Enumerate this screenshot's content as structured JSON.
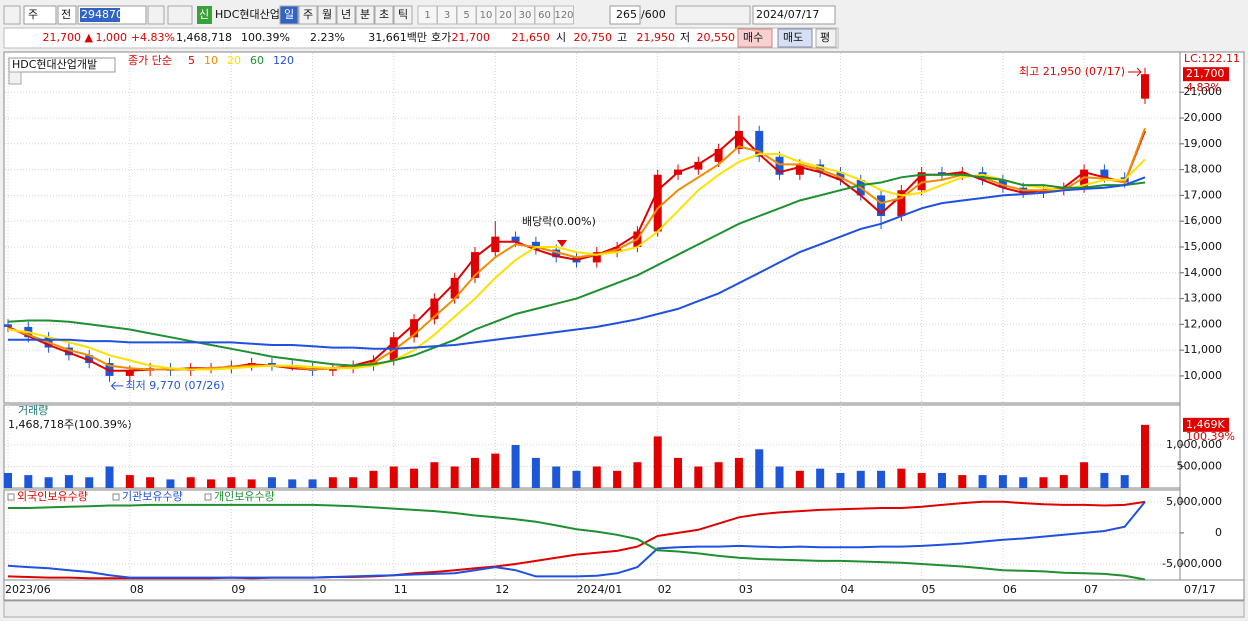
{
  "toolbar": {
    "market": "주",
    "mode": "전",
    "code": "294870",
    "badge": "신",
    "name": "HDC현대산업",
    "periods": [
      "일",
      "주",
      "월",
      "년",
      "분",
      "초",
      "틱"
    ],
    "multipliers": [
      1,
      3,
      5,
      10,
      20,
      30,
      60,
      120
    ],
    "count": 265,
    "max": "/600",
    "date": "2024/07/17"
  },
  "quote": {
    "price": "21,700 ▲",
    "change": "1,000",
    "change_pct": "+4.83%",
    "volume": "1,468,718",
    "volume_ratio": "100.39%",
    "turnover": "2.23%",
    "amount": "31,661백만",
    "bid_label": "호가",
    "ask": "21,700",
    "bid": "21,650",
    "open_label": "시",
    "open": "20,750",
    "high_label": "고",
    "high": "21,950",
    "low_label": "저",
    "low": "20,550",
    "buy": "매수",
    "sell": "매도",
    "avg": "평"
  },
  "chart_data": [
    {
      "type": "candlestick",
      "title": "HDC현대산업개발",
      "subtitle": "종가 단순",
      "up_color": "#e00000",
      "down_color": "#1e56d8",
      "open": [
        12000,
        11900,
        11500,
        11100,
        10800,
        10500,
        10000,
        10200,
        10300,
        10200,
        10300,
        10300,
        10400,
        10500,
        10400,
        10300,
        10200,
        10300,
        10400,
        10600,
        11500,
        12200,
        13000,
        13800,
        14800,
        15400,
        15200,
        14900,
        14600,
        14400,
        14800,
        15000,
        15600,
        17800,
        18000,
        18300,
        18800,
        19500,
        18500,
        17800,
        18200,
        17900,
        17600,
        17000,
        16200,
        17200,
        17900,
        17800,
        17900,
        17600,
        17300,
        17100,
        17200,
        17300,
        18000,
        17700,
        20750
      ],
      "high": [
        12200,
        12100,
        11700,
        11300,
        11000,
        10700,
        10400,
        10500,
        10500,
        10500,
        10500,
        10600,
        10700,
        10700,
        10600,
        10500,
        10500,
        10600,
        10800,
        11700,
        12400,
        13200,
        14000,
        15000,
        16000,
        15600,
        15400,
        15100,
        14800,
        15000,
        15200,
        15800,
        18000,
        18200,
        18500,
        19000,
        20100,
        19700,
        18700,
        18400,
        18400,
        18100,
        17800,
        17200,
        17400,
        18100,
        18100,
        18100,
        18100,
        17800,
        17500,
        17400,
        17500,
        18200,
        18200,
        17900,
        21950
      ],
      "low": [
        11700,
        11300,
        10900,
        10600,
        10300,
        9770,
        9800,
        10000,
        10000,
        10000,
        10100,
        10100,
        10200,
        10200,
        10200,
        10000,
        10000,
        10100,
        10200,
        10400,
        11300,
        12000,
        12800,
        13600,
        14600,
        15000,
        14700,
        14400,
        14200,
        14200,
        14600,
        14800,
        15400,
        17600,
        17800,
        18100,
        18600,
        18300,
        17600,
        17600,
        17700,
        17400,
        16800,
        15700,
        16000,
        17000,
        17600,
        17600,
        17400,
        17100,
        16900,
        16900,
        17000,
        17100,
        17500,
        17300,
        20550
      ],
      "close": [
        11900,
        11500,
        11100,
        10800,
        10500,
        10000,
        10200,
        10300,
        10200,
        10300,
        10300,
        10400,
        10500,
        10400,
        10300,
        10200,
        10300,
        10400,
        10600,
        11500,
        12200,
        13000,
        13800,
        14800,
        15400,
        15200,
        14900,
        14600,
        14400,
        14800,
        15000,
        15600,
        17800,
        18000,
        18300,
        18800,
        19500,
        18500,
        17800,
        18200,
        17900,
        17600,
        17000,
        16200,
        17200,
        17900,
        17800,
        17900,
        17600,
        17300,
        17100,
        17200,
        17300,
        18000,
        17700,
        17500,
        21700
      ],
      "series": [
        {
          "name": "5",
          "color": "#e00000",
          "values": [
            11900,
            11550,
            11200,
            10900,
            10600,
            10200,
            10200,
            10250,
            10250,
            10300,
            10300,
            10350,
            10450,
            10400,
            10300,
            10250,
            10300,
            10400,
            10600,
            11300,
            12000,
            12800,
            13600,
            14600,
            15200,
            15200,
            14900,
            14650,
            14500,
            14700,
            15000,
            15500,
            17200,
            17900,
            18200,
            18700,
            19400,
            18600,
            17900,
            18100,
            17900,
            17600,
            17000,
            16300,
            17000,
            17800,
            17800,
            17900,
            17600,
            17300,
            17100,
            17200,
            17300,
            17900,
            17700,
            17500,
            19500
          ]
        },
        {
          "name": "10",
          "color": "#f08c00",
          "values": [
            11850,
            11600,
            11300,
            11000,
            10800,
            10400,
            10300,
            10250,
            10250,
            10250,
            10300,
            10350,
            10400,
            10400,
            10350,
            10250,
            10300,
            10350,
            10500,
            11000,
            11600,
            12300,
            13000,
            13900,
            14600,
            15100,
            15000,
            14800,
            14600,
            14700,
            14900,
            15300,
            16500,
            17200,
            17700,
            18200,
            18900,
            18700,
            18200,
            18200,
            18000,
            17700,
            17300,
            16700,
            16900,
            17500,
            17600,
            17800,
            17700,
            17400,
            17200,
            17200,
            17200,
            17700,
            17650,
            17500,
            19600
          ]
        },
        {
          "name": "20",
          "color": "#ffe000",
          "values": [
            11800,
            11700,
            11500,
            11300,
            11100,
            10800,
            10600,
            10400,
            10300,
            10250,
            10250,
            10300,
            10350,
            10400,
            10400,
            10350,
            10300,
            10300,
            10400,
            10600,
            11000,
            11600,
            12300,
            13000,
            13800,
            14500,
            15000,
            15000,
            14800,
            14700,
            14800,
            15000,
            15600,
            16400,
            17200,
            17800,
            18300,
            18600,
            18600,
            18300,
            18100,
            17900,
            17600,
            17200,
            17000,
            17100,
            17400,
            17700,
            17800,
            17600,
            17400,
            17300,
            17200,
            17400,
            17600,
            17600,
            18400
          ]
        },
        {
          "name": "60",
          "color": "#1e9030",
          "values": [
            12100,
            12150,
            12150,
            12100,
            12000,
            11900,
            11800,
            11650,
            11500,
            11350,
            11200,
            11050,
            10900,
            10750,
            10650,
            10550,
            10450,
            10400,
            10450,
            10600,
            10800,
            11100,
            11400,
            11800,
            12100,
            12400,
            12600,
            12800,
            13000,
            13300,
            13600,
            13900,
            14300,
            14700,
            15100,
            15500,
            15900,
            16200,
            16500,
            16800,
            17000,
            17200,
            17400,
            17500,
            17700,
            17800,
            17800,
            17800,
            17700,
            17600,
            17400,
            17400,
            17300,
            17300,
            17400,
            17400,
            17500
          ]
        },
        {
          "name": "120",
          "color": "#2050e0",
          "values": [
            11400,
            11400,
            11400,
            11400,
            11350,
            11350,
            11300,
            11300,
            11300,
            11300,
            11300,
            11300,
            11250,
            11200,
            11200,
            11150,
            11100,
            11100,
            11050,
            11050,
            11100,
            11150,
            11200,
            11300,
            11400,
            11500,
            11600,
            11700,
            11800,
            11900,
            12050,
            12200,
            12400,
            12600,
            12900,
            13200,
            13600,
            14000,
            14400,
            14800,
            15100,
            15400,
            15700,
            15900,
            16200,
            16500,
            16700,
            16800,
            16900,
            17000,
            17050,
            17100,
            17200,
            17250,
            17300,
            17400,
            17700
          ]
        }
      ],
      "ylim": [
        8950,
        22560
      ],
      "yticks": [
        {
          "value": 10000,
          "label": "10,000"
        },
        {
          "value": 11000,
          "label": "11,000"
        },
        {
          "value": 12000,
          "label": "12,000"
        },
        {
          "value": 13000,
          "label": "13,000"
        },
        {
          "value": 14000,
          "label": "14,000"
        },
        {
          "value": 15000,
          "label": "15,000"
        },
        {
          "value": 16000,
          "label": "16,000"
        },
        {
          "value": 17000,
          "label": "17,000"
        },
        {
          "value": 18000,
          "label": "18,000"
        },
        {
          "value": 19000,
          "label": "19,000"
        },
        {
          "value": 20000,
          "label": "20,000"
        },
        {
          "value": 21000,
          "label": "21,000"
        }
      ],
      "annotations": [
        "최고 21,950 (07/17)",
        "최저 9,770 (07/26)",
        "배당락(0.00%)"
      ],
      "lc_label": "LC:122.11",
      "last_label": "21,700",
      "last_pct": "4.83%"
    },
    {
      "type": "bar",
      "title": "거래량",
      "subtitle": "1,468,718주(100.39%)",
      "values": [
        350000,
        300000,
        250000,
        300000,
        250000,
        500000,
        300000,
        250000,
        200000,
        250000,
        200000,
        250000,
        200000,
        250000,
        200000,
        200000,
        250000,
        250000,
        400000,
        500000,
        450000,
        600000,
        500000,
        700000,
        800000,
        1000000,
        700000,
        500000,
        400000,
        500000,
        400000,
        600000,
        1200000,
        700000,
        500000,
        600000,
        700000,
        900000,
        500000,
        400000,
        450000,
        350000,
        400000,
        400000,
        450000,
        350000,
        350000,
        300000,
        300000,
        300000,
        250000,
        250000,
        300000,
        600000,
        350000,
        300000,
        1468718
      ],
      "ylim": [
        0,
        1930000
      ],
      "yticks": [
        {
          "value": 500000,
          "label": "500,000"
        },
        {
          "value": 1000000,
          "label": "1,000,000"
        }
      ],
      "last_label": "1,469K",
      "last_pct": "100.39%"
    },
    {
      "type": "line",
      "categories": [
        "2023/06",
        null,
        null,
        null,
        null,
        null,
        "08",
        null,
        null,
        null,
        null,
        "09",
        null,
        null,
        null,
        "10",
        null,
        null,
        null,
        "11",
        null,
        null,
        null,
        null,
        "12",
        null,
        null,
        null,
        "2024/01",
        null,
        null,
        null,
        "02",
        null,
        null,
        null,
        "03",
        null,
        null,
        null,
        null,
        "04",
        null,
        null,
        null,
        "05",
        null,
        null,
        null,
        "06",
        null,
        null,
        null,
        "07",
        null,
        null,
        null
      ],
      "series": [
        {
          "name": "외국인보유수량",
          "color": "#e00000",
          "values": [
            -7000000,
            -7100000,
            -7200000,
            -7200000,
            -7300000,
            -7300000,
            -7300000,
            -7300000,
            -7300000,
            -7300000,
            -7300000,
            -7200000,
            -7300000,
            -7200000,
            -7200000,
            -7200000,
            -7100000,
            -7100000,
            -7000000,
            -6800000,
            -6500000,
            -6300000,
            -6000000,
            -5700000,
            -5400000,
            -5000000,
            -4500000,
            -4000000,
            -3500000,
            -3200000,
            -2900000,
            -2200000,
            -500000,
            0,
            500000,
            1500000,
            2500000,
            3000000,
            3300000,
            3500000,
            3700000,
            3800000,
            3900000,
            4000000,
            4000000,
            4200000,
            4500000,
            4800000,
            5000000,
            5000000,
            4800000,
            4600000,
            4500000,
            4500000,
            4400000,
            4500000,
            5000000
          ]
        },
        {
          "name": "기관보유수량",
          "color": "#2050e0",
          "values": [
            -5300000,
            -5500000,
            -5700000,
            -6000000,
            -6300000,
            -6800000,
            -7200000,
            -7200000,
            -7200000,
            -7200000,
            -7200000,
            -7200000,
            -7200000,
            -7200000,
            -7200000,
            -7200000,
            -7100000,
            -7000000,
            -6900000,
            -6800000,
            -6700000,
            -6600000,
            -6500000,
            -6000000,
            -5500000,
            -6000000,
            -7000000,
            -7000000,
            -7000000,
            -6900000,
            -6500000,
            -5500000,
            -2500000,
            -2300000,
            -2200000,
            -2200000,
            -2100000,
            -2200000,
            -2300000,
            -2200000,
            -2300000,
            -2300000,
            -2300000,
            -2200000,
            -2200000,
            -2100000,
            -1900000,
            -1700000,
            -1400000,
            -1100000,
            -900000,
            -600000,
            -300000,
            0,
            300000,
            1000000,
            5000000
          ]
        },
        {
          "name": "개인보유수량",
          "color": "#1e9030",
          "values": [
            4000000,
            4000000,
            4100000,
            4200000,
            4300000,
            4400000,
            4400000,
            4500000,
            4500000,
            4500000,
            4500000,
            4500000,
            4500000,
            4500000,
            4500000,
            4500000,
            4400000,
            4300000,
            4100000,
            3900000,
            3700000,
            3500000,
            3200000,
            2800000,
            2500000,
            2200000,
            1800000,
            1200000,
            600000,
            200000,
            -300000,
            -1000000,
            -2800000,
            -3000000,
            -3300000,
            -3700000,
            -4000000,
            -4200000,
            -4300000,
            -4400000,
            -4500000,
            -4500000,
            -4600000,
            -4700000,
            -4800000,
            -5000000,
            -5200000,
            -5400000,
            -5700000,
            -6000000,
            -6100000,
            -6200000,
            -6400000,
            -6500000,
            -6600000,
            -6900000,
            -7500000
          ]
        }
      ],
      "ylim": [
        -7580000,
        6900000
      ],
      "yticks": [
        {
          "value": 5000000,
          "label": "5,000,000"
        },
        0,
        {
          "value": -5000000,
          "label": "-5,000,000"
        }
      ],
      "x_end_label": "07/17"
    }
  ]
}
